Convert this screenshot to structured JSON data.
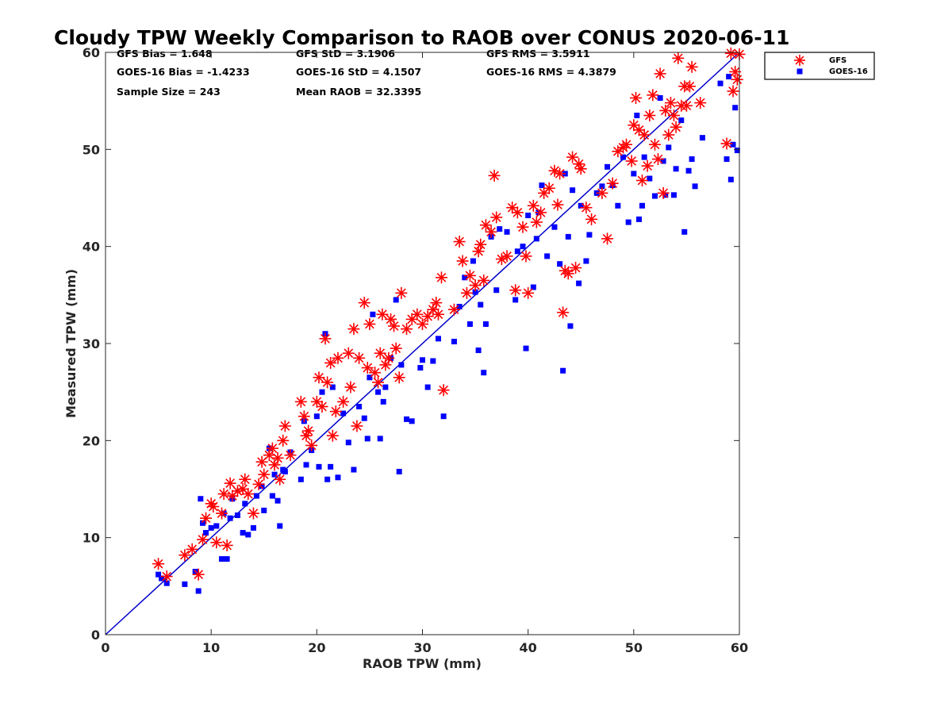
{
  "chart_data": {
    "type": "scatter",
    "title": "Cloudy TPW Weekly Comparison to RAOB over CONUS 2020-06-11",
    "xlabel": "RAOB TPW (mm)",
    "ylabel": "Measured TPW (mm)",
    "xlim": [
      0,
      60
    ],
    "ylim": [
      0,
      60
    ],
    "xticks": [
      0,
      10,
      20,
      30,
      40,
      50,
      60
    ],
    "yticks": [
      0,
      10,
      20,
      30,
      40,
      50,
      60
    ],
    "grid": false,
    "legend_position": "outside-top-right",
    "stats": [
      [
        "GFS Bias = 1.648",
        "GFS StD = 3.1906",
        "GFS RMS = 3.5911"
      ],
      [
        "GOES-16 Bias = -1.4233",
        "GOES-16 StD = 4.1507",
        "GOES-16 RMS = 4.3879"
      ],
      [
        "Sample Size = 243",
        "Mean RAOB = 32.3395",
        ""
      ]
    ],
    "reference_line": {
      "x": [
        0,
        60
      ],
      "y": [
        0,
        60
      ],
      "color": "#0000cc"
    },
    "series": [
      {
        "name": "GFS",
        "marker": "asterisk",
        "color": "#ff0000",
        "points": [
          [
            5,
            7.3
          ],
          [
            5.8,
            6
          ],
          [
            7.5,
            8.2
          ],
          [
            8.2,
            8.8
          ],
          [
            8.8,
            6.2
          ],
          [
            9.2,
            9.8
          ],
          [
            9.5,
            12
          ],
          [
            10,
            13.5
          ],
          [
            10.2,
            13.2
          ],
          [
            10.5,
            9.5
          ],
          [
            11,
            12.5
          ],
          [
            11.2,
            14.5
          ],
          [
            11.5,
            9.2
          ],
          [
            11.8,
            15.6
          ],
          [
            12,
            14.3
          ],
          [
            12.5,
            14.8
          ],
          [
            13,
            15
          ],
          [
            13.2,
            16
          ],
          [
            13.5,
            14.5
          ],
          [
            14,
            12.5
          ],
          [
            14.5,
            15.5
          ],
          [
            14.8,
            17.8
          ],
          [
            15,
            16.5
          ],
          [
            15.5,
            18.5
          ],
          [
            15.8,
            19.2
          ],
          [
            16,
            17.5
          ],
          [
            16.3,
            18.2
          ],
          [
            16.5,
            16
          ],
          [
            16.8,
            20
          ],
          [
            17,
            21.5
          ],
          [
            17.5,
            18.5
          ],
          [
            18.5,
            24
          ],
          [
            18.8,
            22.5
          ],
          [
            19,
            20.5
          ],
          [
            19.2,
            21
          ],
          [
            19.5,
            19.5
          ],
          [
            20,
            24
          ],
          [
            20.2,
            26.5
          ],
          [
            20.5,
            23.5
          ],
          [
            20.8,
            30.5
          ],
          [
            21,
            26
          ],
          [
            21.3,
            28
          ],
          [
            21.5,
            20.5
          ],
          [
            21.8,
            23
          ],
          [
            22,
            28.5
          ],
          [
            22.5,
            24
          ],
          [
            23,
            29
          ],
          [
            23.2,
            25.5
          ],
          [
            23.5,
            31.5
          ],
          [
            23.8,
            21.5
          ],
          [
            24,
            28.5
          ],
          [
            24.5,
            34.2
          ],
          [
            24.8,
            27.5
          ],
          [
            25,
            32
          ],
          [
            25.5,
            27
          ],
          [
            25.8,
            26
          ],
          [
            26,
            29
          ],
          [
            26.2,
            33
          ],
          [
            26.5,
            27.8
          ],
          [
            26.8,
            28.5
          ],
          [
            27,
            32.5
          ],
          [
            27.3,
            31.8
          ],
          [
            27.5,
            29.5
          ],
          [
            27.8,
            26.5
          ],
          [
            28,
            35.2
          ],
          [
            28.5,
            31.5
          ],
          [
            29,
            32.5
          ],
          [
            29.5,
            33
          ],
          [
            30,
            32
          ],
          [
            30.5,
            32.8
          ],
          [
            31,
            33.5
          ],
          [
            31.3,
            34.2
          ],
          [
            31.5,
            33
          ],
          [
            31.8,
            36.8
          ],
          [
            32,
            25.2
          ],
          [
            33,
            33.5
          ],
          [
            33.5,
            40.5
          ],
          [
            33.8,
            38.5
          ],
          [
            34.2,
            35.2
          ],
          [
            34.5,
            37
          ],
          [
            35,
            36
          ],
          [
            35.3,
            39.5
          ],
          [
            35.5,
            40.2
          ],
          [
            35.8,
            36.5
          ],
          [
            36,
            42.2
          ],
          [
            36.5,
            41.5
          ],
          [
            36.8,
            47.3
          ],
          [
            37,
            43
          ],
          [
            37.5,
            38.7
          ],
          [
            38,
            39
          ],
          [
            38.5,
            44
          ],
          [
            38.8,
            35.5
          ],
          [
            39,
            43.5
          ],
          [
            39.5,
            42
          ],
          [
            39.8,
            39
          ],
          [
            40,
            35.2
          ],
          [
            40.5,
            44.2
          ],
          [
            40.8,
            42.5
          ],
          [
            41.2,
            43.5
          ],
          [
            41.5,
            45.5
          ],
          [
            42,
            46
          ],
          [
            42.5,
            47.8
          ],
          [
            42.8,
            44.3
          ],
          [
            43,
            47.5
          ],
          [
            43.3,
            33.2
          ],
          [
            43.5,
            37.5
          ],
          [
            43.8,
            37.2
          ],
          [
            44.2,
            49.2
          ],
          [
            44.5,
            37.8
          ],
          [
            44.8,
            48.5
          ],
          [
            45,
            48
          ],
          [
            45.5,
            44
          ],
          [
            46,
            42.8
          ],
          [
            47,
            45.5
          ],
          [
            47.5,
            40.8
          ],
          [
            48,
            46.5
          ],
          [
            48.5,
            49.8
          ],
          [
            49,
            50.2
          ],
          [
            49.3,
            50.5
          ],
          [
            49.8,
            48.8
          ],
          [
            50,
            52.5
          ],
          [
            50.2,
            55.3
          ],
          [
            50.5,
            52
          ],
          [
            50.8,
            46.8
          ],
          [
            51,
            51.5
          ],
          [
            51.3,
            48.3
          ],
          [
            51.5,
            53.5
          ],
          [
            51.8,
            55.6
          ],
          [
            52,
            50.5
          ],
          [
            52.3,
            49
          ],
          [
            52.5,
            57.8
          ],
          [
            52.8,
            45.5
          ],
          [
            53,
            54
          ],
          [
            53.3,
            51.5
          ],
          [
            53.5,
            54.8
          ],
          [
            53.8,
            53.5
          ],
          [
            54,
            52.3
          ],
          [
            54.2,
            59.4
          ],
          [
            54.5,
            54.5
          ],
          [
            54.8,
            56.5
          ],
          [
            55,
            54.5
          ],
          [
            55.3,
            56.5
          ],
          [
            55.5,
            58.5
          ],
          [
            56.3,
            54.8
          ],
          [
            58.8,
            50.6
          ],
          [
            59.2,
            59.9
          ],
          [
            59.4,
            56
          ],
          [
            59.6,
            58
          ],
          [
            59.8,
            57.2
          ],
          [
            60,
            59.8
          ]
        ]
      },
      {
        "name": "GOES-16",
        "marker": "square",
        "color": "#0000ff",
        "points": [
          [
            5,
            6.2
          ],
          [
            5.3,
            5.8
          ],
          [
            5.8,
            5.3
          ],
          [
            7.5,
            5.2
          ],
          [
            8.5,
            6.5
          ],
          [
            8.8,
            4.5
          ],
          [
            9,
            14
          ],
          [
            9.2,
            11.5
          ],
          [
            9.5,
            10.5
          ],
          [
            10,
            11
          ],
          [
            10.5,
            11.2
          ],
          [
            11,
            7.8
          ],
          [
            11.2,
            12.5
          ],
          [
            11.5,
            7.8
          ],
          [
            11.8,
            12
          ],
          [
            12,
            14
          ],
          [
            12.5,
            12.3
          ],
          [
            13,
            10.5
          ],
          [
            13.2,
            13.5
          ],
          [
            13.5,
            10.3
          ],
          [
            14,
            11
          ],
          [
            14.3,
            14.3
          ],
          [
            14.8,
            15.3
          ],
          [
            15,
            12.8
          ],
          [
            15.5,
            19.2
          ],
          [
            15.8,
            14.3
          ],
          [
            16,
            16.5
          ],
          [
            16.3,
            13.8
          ],
          [
            16.5,
            11.2
          ],
          [
            16.8,
            17
          ],
          [
            17,
            16.8
          ],
          [
            17.5,
            18.8
          ],
          [
            18.5,
            16
          ],
          [
            18.8,
            22
          ],
          [
            19,
            17.5
          ],
          [
            19.5,
            19
          ],
          [
            20,
            22.5
          ],
          [
            20.2,
            17.3
          ],
          [
            20.5,
            25
          ],
          [
            20.8,
            31
          ],
          [
            21,
            16
          ],
          [
            21.3,
            17.3
          ],
          [
            21.5,
            25.5
          ],
          [
            22,
            16.2
          ],
          [
            22.5,
            22.8
          ],
          [
            23,
            19.8
          ],
          [
            23.5,
            17
          ],
          [
            24,
            23.5
          ],
          [
            24.5,
            22.3
          ],
          [
            24.8,
            20.2
          ],
          [
            25,
            26.5
          ],
          [
            25.3,
            33
          ],
          [
            25.8,
            25
          ],
          [
            26,
            20.2
          ],
          [
            26.3,
            24
          ],
          [
            26.5,
            25.5
          ],
          [
            27,
            28.5
          ],
          [
            27.5,
            34.5
          ],
          [
            27.8,
            16.8
          ],
          [
            28,
            27.8
          ],
          [
            28.5,
            22.2
          ],
          [
            29,
            22
          ],
          [
            29.8,
            27.5
          ],
          [
            30,
            28.3
          ],
          [
            30.5,
            25.5
          ],
          [
            31,
            28.2
          ],
          [
            31.5,
            30.5
          ],
          [
            32,
            22.5
          ],
          [
            33,
            30.2
          ],
          [
            33.5,
            33.8
          ],
          [
            34,
            36.8
          ],
          [
            34.5,
            32
          ],
          [
            34.8,
            38.5
          ],
          [
            35,
            35.3
          ],
          [
            35.3,
            29.3
          ],
          [
            35.5,
            34
          ],
          [
            35.8,
            27
          ],
          [
            36,
            32
          ],
          [
            36.5,
            41
          ],
          [
            37,
            35.5
          ],
          [
            37.3,
            41.8
          ],
          [
            38,
            41.5
          ],
          [
            38.8,
            34.5
          ],
          [
            39,
            39.5
          ],
          [
            39.5,
            40
          ],
          [
            39.8,
            29.5
          ],
          [
            40,
            43.2
          ],
          [
            40.5,
            35.8
          ],
          [
            40.8,
            40.8
          ],
          [
            41,
            43.5
          ],
          [
            41.3,
            46.3
          ],
          [
            41.8,
            39
          ],
          [
            42.5,
            42
          ],
          [
            43,
            38.2
          ],
          [
            43.3,
            27.2
          ],
          [
            43.5,
            47.5
          ],
          [
            43.8,
            41
          ],
          [
            44,
            31.8
          ],
          [
            44.2,
            45.8
          ],
          [
            44.8,
            36.2
          ],
          [
            45,
            44.2
          ],
          [
            45.5,
            38.5
          ],
          [
            45.8,
            41.2
          ],
          [
            46.5,
            45.5
          ],
          [
            47,
            46.2
          ],
          [
            47.5,
            48.2
          ],
          [
            48,
            46.3
          ],
          [
            48.5,
            44.2
          ],
          [
            49,
            49.2
          ],
          [
            49.5,
            42.5
          ],
          [
            50,
            47.5
          ],
          [
            50.3,
            53.5
          ],
          [
            50.5,
            42.8
          ],
          [
            50.8,
            44.2
          ],
          [
            51,
            49.2
          ],
          [
            51.5,
            47
          ],
          [
            52,
            45.2
          ],
          [
            52.5,
            55.3
          ],
          [
            52.8,
            48.8
          ],
          [
            53,
            45.3
          ],
          [
            53.3,
            50.2
          ],
          [
            53.8,
            45.3
          ],
          [
            54,
            48
          ],
          [
            54.5,
            53
          ],
          [
            54.8,
            41.5
          ],
          [
            55.2,
            47.8
          ],
          [
            55.5,
            49
          ],
          [
            55.8,
            46.2
          ],
          [
            56.5,
            51.2
          ],
          [
            58.2,
            56.8
          ],
          [
            58.8,
            49
          ],
          [
            59,
            57.5
          ],
          [
            59.2,
            46.9
          ],
          [
            59.4,
            50.5
          ],
          [
            59.6,
            54.3
          ],
          [
            59.8,
            49.9
          ]
        ]
      }
    ]
  }
}
